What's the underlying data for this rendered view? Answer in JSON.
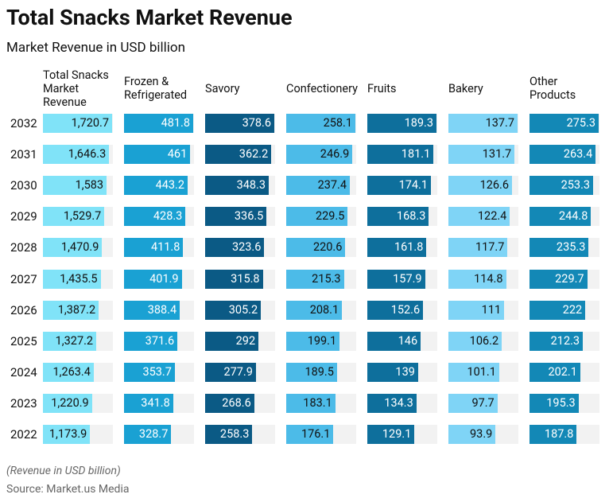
{
  "chart_data": {
    "type": "bar-table",
    "title": "Total Snacks Market Revenue",
    "subtitle": "Market Revenue in USD billion",
    "note": "(Revenue in USD billion)",
    "source": "Source: Market.us Media",
    "categories": [
      "2032",
      "2031",
      "2030",
      "2029",
      "2028",
      "2027",
      "2026",
      "2025",
      "2024",
      "2023",
      "2022"
    ],
    "series": [
      {
        "name": "Total Snacks Market Revenue",
        "color": "#80e3f8",
        "text_color": "#111111",
        "values": [
          1720.7,
          1646.3,
          1583,
          1529.7,
          1470.9,
          1435.5,
          1387.2,
          1327.2,
          1263.4,
          1220.9,
          1173.9
        ],
        "value_labels": [
          "1,720.7",
          "1,646.3",
          "1,583",
          "1,529.7",
          "1,470.9",
          "1,435.5",
          "1,387.2",
          "1,327.2",
          "1,263.4",
          "1,220.9",
          "1,173.9"
        ]
      },
      {
        "name": "Frozen & Refrigerated",
        "color": "#1aa1d3",
        "text_color": "#ffffff",
        "values": [
          481.8,
          461,
          443.2,
          428.3,
          411.8,
          401.9,
          388.4,
          371.6,
          353.7,
          341.8,
          328.7
        ]
      },
      {
        "name": "Savory",
        "color": "#0b5a85",
        "text_color": "#ffffff",
        "values": [
          378.6,
          362.2,
          348.3,
          336.5,
          323.6,
          315.8,
          305.2,
          292,
          277.9,
          268.6,
          258.3
        ]
      },
      {
        "name": "Confectionery",
        "color": "#4cbbe8",
        "text_color": "#111111",
        "values": [
          258.1,
          246.9,
          237.4,
          229.5,
          220.6,
          215.3,
          208.1,
          199.1,
          189.5,
          183.1,
          176.1
        ]
      },
      {
        "name": "Fruits",
        "color": "#0e6f9c",
        "text_color": "#ffffff",
        "values": [
          189.3,
          181.1,
          174.1,
          168.3,
          161.8,
          157.9,
          152.6,
          146,
          139,
          134.3,
          129.1
        ]
      },
      {
        "name": "Bakery",
        "color": "#7fd4f6",
        "text_color": "#111111",
        "values": [
          137.7,
          131.7,
          126.6,
          122.4,
          117.7,
          114.8,
          111,
          106.2,
          101.1,
          97.7,
          93.9
        ]
      },
      {
        "name": "Other Products",
        "color": "#1388b6",
        "text_color": "#ffffff",
        "values": [
          275.3,
          263.4,
          253.3,
          244.8,
          235.3,
          229.7,
          222,
          212.3,
          202.1,
          195.3,
          187.8
        ]
      }
    ]
  }
}
